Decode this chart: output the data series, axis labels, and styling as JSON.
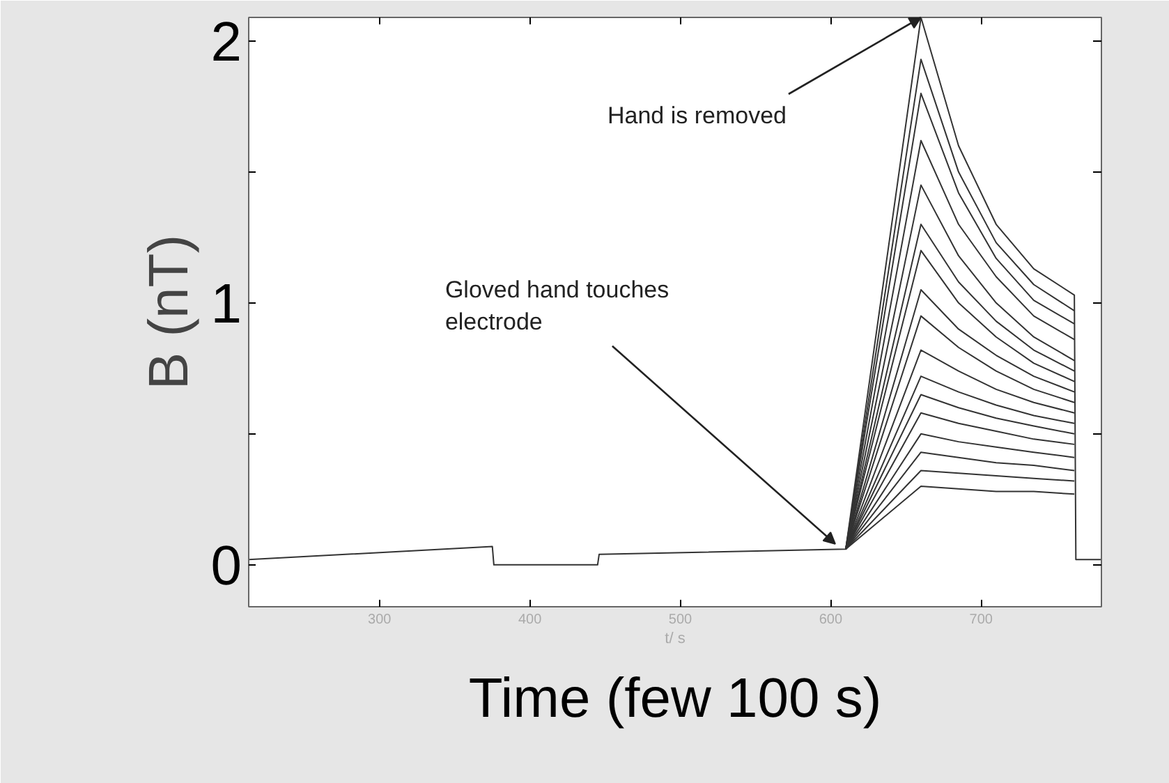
{
  "chart_data": {
    "type": "line",
    "xlabel": "t/ s",
    "ylabel": "B (nT)",
    "annotations": [
      {
        "text": "Hand is removed",
        "x": 660,
        "y": 2.09
      },
      {
        "text": "Gloved hand touches\nelectrode",
        "x": 603,
        "y": 0.08
      },
      "Time (few 100 s)"
    ],
    "x": [
      213,
      375,
      376,
      445,
      446,
      610,
      660,
      685,
      710,
      735,
      762,
      763,
      780
    ],
    "xlim": [
      213,
      780
    ],
    "ylim": [
      -0.16,
      2.09
    ],
    "xticks": [
      300,
      400,
      500,
      600,
      700
    ],
    "yticks": [
      0,
      {
        "value": 0.5,
        "label": null
      },
      1,
      {
        "value": 1.5,
        "label": null
      },
      2
    ],
    "grid": false,
    "marker": "none",
    "line_style": "solid",
    "series": [
      {
        "color": "#333333",
        "values": [
          0.02,
          0.07,
          0,
          0,
          0.04,
          0.06,
          2.09,
          1.6,
          1.3,
          1.13,
          1.03,
          0.02,
          0.02
        ]
      },
      {
        "color": "#333333",
        "values": [
          null,
          null,
          null,
          null,
          null,
          0.06,
          1.93,
          1.5,
          1.23,
          1.07,
          0.97,
          null,
          null
        ]
      },
      {
        "color": "#333333",
        "values": [
          null,
          null,
          null,
          null,
          null,
          0.06,
          1.8,
          1.42,
          1.17,
          1.01,
          0.92,
          null,
          null
        ]
      },
      {
        "color": "#333333",
        "values": [
          null,
          null,
          null,
          null,
          null,
          0.06,
          1.62,
          1.3,
          1.1,
          0.95,
          0.86,
          null,
          null
        ]
      },
      {
        "color": "#333333",
        "values": [
          null,
          null,
          null,
          null,
          null,
          0.06,
          1.45,
          1.18,
          1.0,
          0.87,
          0.78,
          null,
          null
        ]
      },
      {
        "color": "#333333",
        "values": [
          null,
          null,
          null,
          null,
          null,
          0.06,
          1.3,
          1.08,
          0.93,
          0.82,
          0.74,
          null,
          null
        ]
      },
      {
        "color": "#333333",
        "values": [
          null,
          null,
          null,
          null,
          null,
          0.06,
          1.2,
          1.0,
          0.87,
          0.77,
          0.7,
          null,
          null
        ]
      },
      {
        "color": "#333333",
        "values": [
          null,
          null,
          null,
          null,
          null,
          0.06,
          1.05,
          0.9,
          0.8,
          0.72,
          0.66,
          null,
          null
        ]
      },
      {
        "color": "#333333",
        "values": [
          null,
          null,
          null,
          null,
          null,
          0.06,
          0.95,
          0.83,
          0.74,
          0.67,
          0.62,
          null,
          null
        ]
      },
      {
        "color": "#333333",
        "values": [
          null,
          null,
          null,
          null,
          null,
          0.06,
          0.82,
          0.74,
          0.67,
          0.62,
          0.58,
          null,
          null
        ]
      },
      {
        "color": "#333333",
        "values": [
          null,
          null,
          null,
          null,
          null,
          0.06,
          0.72,
          0.66,
          0.61,
          0.57,
          0.54,
          null,
          null
        ]
      },
      {
        "color": "#333333",
        "values": [
          null,
          null,
          null,
          null,
          null,
          0.06,
          0.65,
          0.6,
          0.56,
          0.53,
          0.5,
          null,
          null
        ]
      },
      {
        "color": "#333333",
        "values": [
          null,
          null,
          null,
          null,
          null,
          0.06,
          0.58,
          0.54,
          0.51,
          0.48,
          0.46,
          null,
          null
        ]
      },
      {
        "color": "#333333",
        "values": [
          null,
          null,
          null,
          null,
          null,
          0.06,
          0.5,
          0.47,
          0.45,
          0.43,
          0.41,
          null,
          null
        ]
      },
      {
        "color": "#333333",
        "values": [
          null,
          null,
          null,
          null,
          null,
          0.06,
          0.43,
          0.41,
          0.39,
          0.38,
          0.36,
          null,
          null
        ]
      },
      {
        "color": "#333333",
        "values": [
          null,
          null,
          null,
          null,
          null,
          0.06,
          0.36,
          0.35,
          0.34,
          0.33,
          0.32,
          null,
          null
        ]
      },
      {
        "color": "#333333",
        "values": [
          null,
          null,
          null,
          null,
          null,
          0.06,
          0.3,
          0.29,
          0.28,
          0.28,
          0.27,
          null,
          null
        ]
      }
    ]
  }
}
